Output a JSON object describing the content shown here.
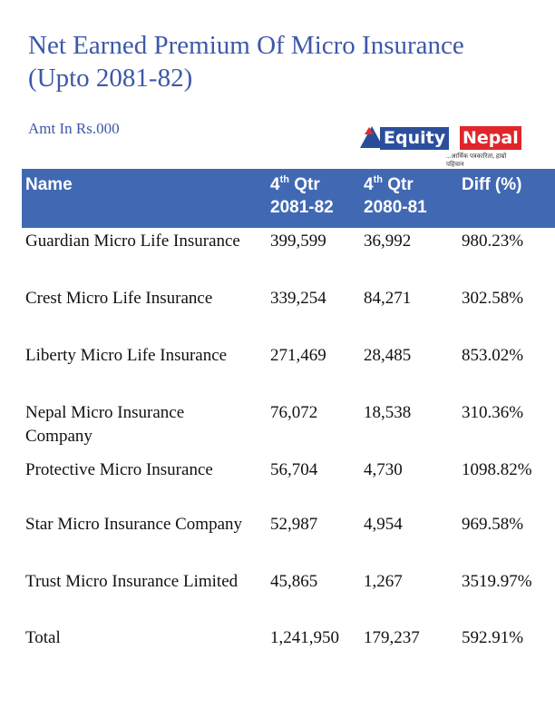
{
  "title_line1": "Net Earned Premium Of Micro Insurance",
  "title_line2": "(Upto 2081-82)",
  "amount_note": "Amt In Rs.000",
  "logo": {
    "part1": "Equity",
    "part2": "Nepal",
    "tagline": "...आर्थिक पत्रकारिता, हाम्रो पहिचान",
    "colors": {
      "blue": "#2c4f9c",
      "red": "#e0262b"
    }
  },
  "header": {
    "name": "Name",
    "col1_prefix": "4",
    "col1_sup": "th",
    "col1_qtr": " Qtr",
    "col1_year": "2081-82",
    "col2_prefix": "4",
    "col2_sup": "th",
    "col2_qtr": " Qtr",
    "col2_year": "2080-81",
    "col3": "Diff (%)",
    "color": "#4169b3"
  },
  "rows": [
    {
      "name": "Guardian Micro Life Insurance",
      "a": "399,599",
      "b": "36,992",
      "diff": "980.23%"
    },
    {
      "name": "Crest Micro Life Insurance",
      "a": "339,254",
      "b": "84,271",
      "diff": "302.58%"
    },
    {
      "name": "Liberty Micro Life Insurance",
      "a": "271,469",
      "b": "28,485",
      "diff": "853.02%"
    },
    {
      "name": "Nepal Micro Insurance Company",
      "a": "76,072",
      "b": "18,538",
      "diff": "310.36%"
    },
    {
      "name": "Protective Micro Insurance",
      "a": "56,704",
      "b": "4,730",
      "diff": "1098.82%"
    },
    {
      "name": "Star Micro Insurance Company",
      "a": "52,987",
      "b": "4,954",
      "diff": "969.58%"
    },
    {
      "name": "Trust Micro Insurance Limited",
      "a": "45,865",
      "b": "1,267",
      "diff": "3519.97%"
    },
    {
      "name": "Total",
      "a": "1,241,950",
      "b": "179,237",
      "diff": "592.91%"
    }
  ]
}
